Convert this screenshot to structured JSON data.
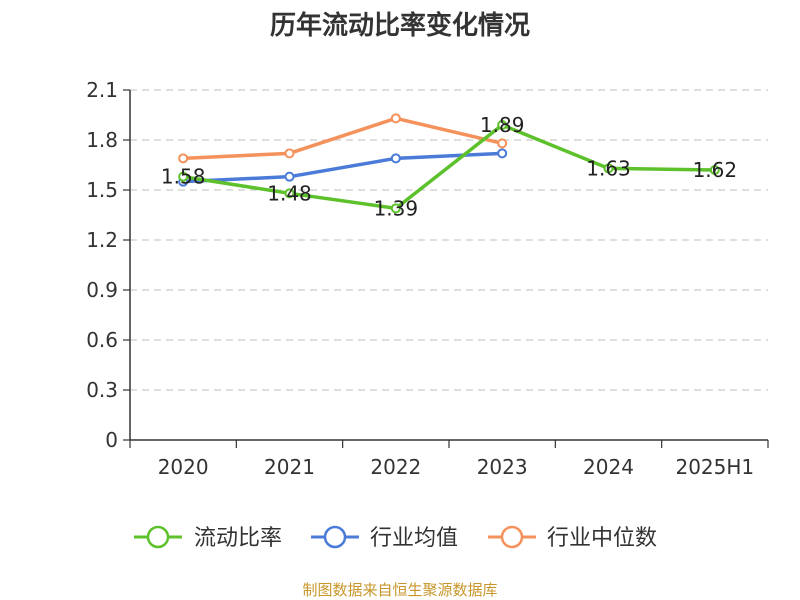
{
  "chart_data": {
    "type": "line",
    "title": "历年流动比率变化情况",
    "categories": [
      "2020",
      "2021",
      "2022",
      "2023",
      "2024",
      "2025H1"
    ],
    "ylim": [
      0,
      2.1
    ],
    "yticks": [
      "0",
      "0.3",
      "0.6",
      "0.9",
      "1.2",
      "1.5",
      "1.8",
      "2.1"
    ],
    "grid": true,
    "legend_position": "bottom",
    "series": [
      {
        "name": "流动比率",
        "color": "#5dc12b",
        "values": [
          1.58,
          1.48,
          1.39,
          1.89,
          1.63,
          1.62
        ],
        "labels": [
          "1.58",
          "1.48",
          "1.39",
          "1.89",
          "1.63",
          "1.62"
        ]
      },
      {
        "name": "行业均值",
        "color": "#4b7bd8",
        "values": [
          1.55,
          1.58,
          1.69,
          1.72,
          null,
          null
        ]
      },
      {
        "name": "行业中位数",
        "color": "#f5915a",
        "values": [
          1.69,
          1.72,
          1.93,
          1.78,
          null,
          null
        ]
      }
    ]
  },
  "source": "制图数据来自恒生聚源数据库"
}
